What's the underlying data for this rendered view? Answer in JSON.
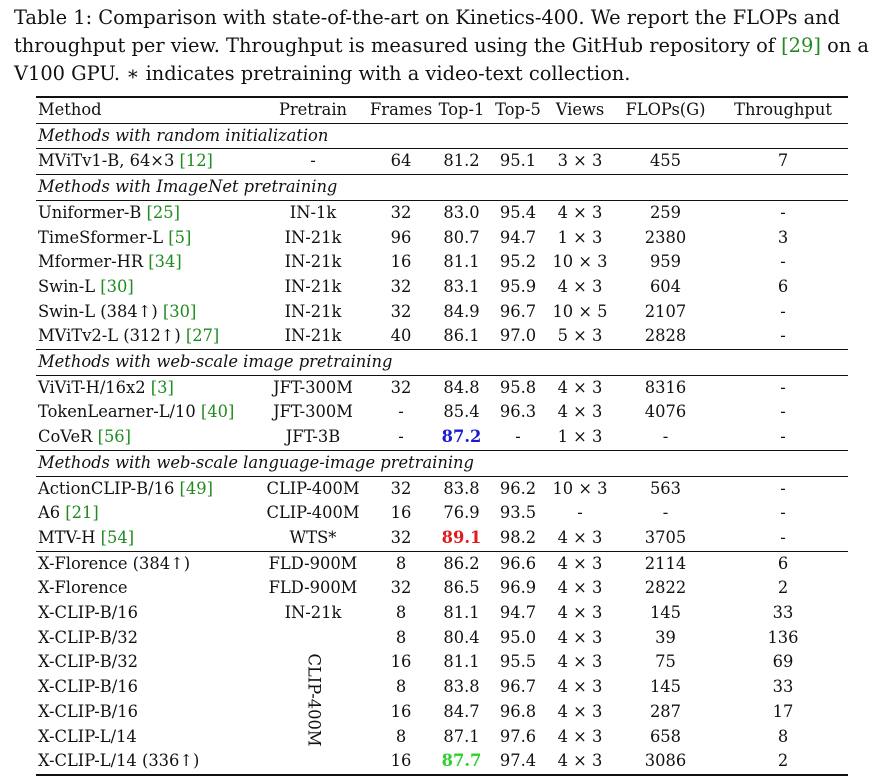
{
  "caption": {
    "label": "Table 1:",
    "text_before_cite": " Comparison with state-of-the-art on Kinetics-400. We report the FLOPs and throughput per view. Throughput is measured using the GitHub repository of ",
    "cite": "[29]",
    "text_after_cite": " on a V100 GPU. ∗ indicates pretraining with a video-text collection."
  },
  "table": {
    "headers": [
      "Method",
      "Pretrain",
      "Frames",
      "Top-1",
      "Top-5",
      "Views",
      "FLOPs(G)",
      "Throughput"
    ],
    "sections": [
      {
        "title": "Methods with random initialization",
        "rows": [
          {
            "name": "MViTv1-B, 64×3 ",
            "cite": "[12]",
            "pretrain": "-",
            "frames": "64",
            "top1": "81.2",
            "top5": "95.1",
            "views": "3 × 3",
            "flops": "455",
            "throughput": "7"
          }
        ]
      },
      {
        "title": "Methods with ImageNet pretraining",
        "rows": [
          {
            "name": "Uniformer-B ",
            "cite": "[25]",
            "pretrain": "IN-1k",
            "frames": "32",
            "top1": "83.0",
            "top5": "95.4",
            "views": "4 × 3",
            "flops": "259",
            "throughput": "-"
          },
          {
            "name": "TimeSformer-L ",
            "cite": "[5]",
            "pretrain": "IN-21k",
            "frames": "96",
            "top1": "80.7",
            "top5": "94.7",
            "views": "1 × 3",
            "flops": "2380",
            "throughput": "3"
          },
          {
            "name": "Mformer-HR ",
            "cite": "[34]",
            "pretrain": "IN-21k",
            "frames": "16",
            "top1": "81.1",
            "top5": "95.2",
            "views": "10 × 3",
            "flops": "959",
            "throughput": "-"
          },
          {
            "name": "Swin-L ",
            "cite": "[30]",
            "pretrain": "IN-21k",
            "frames": "32",
            "top1": "83.1",
            "top5": "95.9",
            "views": "4 × 3",
            "flops": "604",
            "throughput": "6"
          },
          {
            "name": "Swin-L (384↑) ",
            "cite": "[30]",
            "pretrain": "IN-21k",
            "frames": "32",
            "top1": "84.9",
            "top5": "96.7",
            "views": "10 × 5",
            "flops": "2107",
            "throughput": "-"
          },
          {
            "name": "MViTv2-L (312↑) ",
            "cite": "[27]",
            "pretrain": "IN-21k",
            "frames": "40",
            "top1": "86.1",
            "top5": "97.0",
            "views": "5 × 3",
            "flops": "2828",
            "throughput": "-"
          }
        ]
      },
      {
        "title": "Methods with web-scale image pretraining",
        "rows": [
          {
            "name": "ViViT-H/16x2 ",
            "cite": "[3]",
            "pretrain": "JFT-300M",
            "frames": "32",
            "top1": "84.8",
            "top5": "95.8",
            "views": "4 × 3",
            "flops": "8316",
            "throughput": "-"
          },
          {
            "name": "TokenLearner-L/10 ",
            "cite": "[40]",
            "pretrain": "JFT-300M",
            "frames": "-",
            "top1": "85.4",
            "top5": "96.3",
            "views": "4 × 3",
            "flops": "4076",
            "throughput": "-"
          },
          {
            "name": "CoVeR ",
            "cite": "[56]",
            "pretrain": "JFT-3B",
            "frames": "-",
            "top1": "87.2",
            "top1_style": "best-blue",
            "top5": "-",
            "views": "1 × 3",
            "flops": "-",
            "throughput": "-"
          }
        ]
      },
      {
        "title": "Methods with web-scale language-image pretraining",
        "rows": [
          {
            "name": "ActionCLIP-B/16 ",
            "cite": "[49]",
            "pretrain": "CLIP-400M",
            "frames": "32",
            "top1": "83.8",
            "top5": "96.2",
            "views": "10 × 3",
            "flops": "563",
            "throughput": "-"
          },
          {
            "name": "A6 ",
            "cite": "[21]",
            "pretrain": "CLIP-400M",
            "frames": "16",
            "top1": "76.9",
            "top5": "93.5",
            "views": "-",
            "flops": "-",
            "throughput": "-"
          },
          {
            "name": "MTV-H ",
            "cite": "[54]",
            "pretrain": "WTS*",
            "frames": "32",
            "top1": "89.1",
            "top1_style": "best-red",
            "top5": "98.2",
            "views": "4 × 3",
            "flops": "3705",
            "throughput": "-"
          }
        ]
      }
    ],
    "ours": [
      {
        "name": "X-Florence (384↑)",
        "pretrain": "FLD-900M",
        "frames": "8",
        "top1": "86.2",
        "top5": "96.6",
        "views": "4 × 3",
        "flops": "2114",
        "throughput": "6"
      },
      {
        "name": "X-Florence",
        "pretrain": "FLD-900M",
        "frames": "32",
        "top1": "86.5",
        "top5": "96.9",
        "views": "4 × 3",
        "flops": "2822",
        "throughput": "2"
      },
      {
        "name": "X-CLIP-B/16",
        "pretrain": "IN-21k",
        "frames": "8",
        "top1": "81.1",
        "top5": "94.7",
        "views": "4 × 3",
        "flops": "145",
        "throughput": "33"
      },
      {
        "name": "X-CLIP-B/32",
        "pretrain": "",
        "frames": "8",
        "top1": "80.4",
        "top5": "95.0",
        "views": "4 × 3",
        "flops": "39",
        "throughput": "136"
      },
      {
        "name": "X-CLIP-B/32",
        "pretrain": "",
        "frames": "16",
        "top1": "81.1",
        "top5": "95.5",
        "views": "4 × 3",
        "flops": "75",
        "throughput": "69"
      },
      {
        "name": "X-CLIP-B/16",
        "pretrain": "",
        "frames": "8",
        "top1": "83.8",
        "top5": "96.7",
        "views": "4 × 3",
        "flops": "145",
        "throughput": "33"
      },
      {
        "name": "X-CLIP-B/16",
        "pretrain": "",
        "frames": "16",
        "top1": "84.7",
        "top5": "96.8",
        "views": "4 × 3",
        "flops": "287",
        "throughput": "17"
      },
      {
        "name": "X-CLIP-L/14",
        "pretrain": "",
        "frames": "8",
        "top1": "87.1",
        "top5": "97.6",
        "views": "4 × 3",
        "flops": "658",
        "throughput": "8"
      },
      {
        "name": "X-CLIP-L/14 (336↑)",
        "pretrain": "",
        "frames": "16",
        "top1": "87.7",
        "top1_style": "best-green",
        "top5": "97.4",
        "views": "4 × 3",
        "flops": "3086",
        "throughput": "2"
      }
    ],
    "ours_shared_pretrain": "CLIP-400M",
    "colors": {
      "cite": "#1f8b1f",
      "best_blue": "#1a1ad4",
      "best_red": "#e01b1b",
      "best_green": "#2bd12b"
    }
  }
}
